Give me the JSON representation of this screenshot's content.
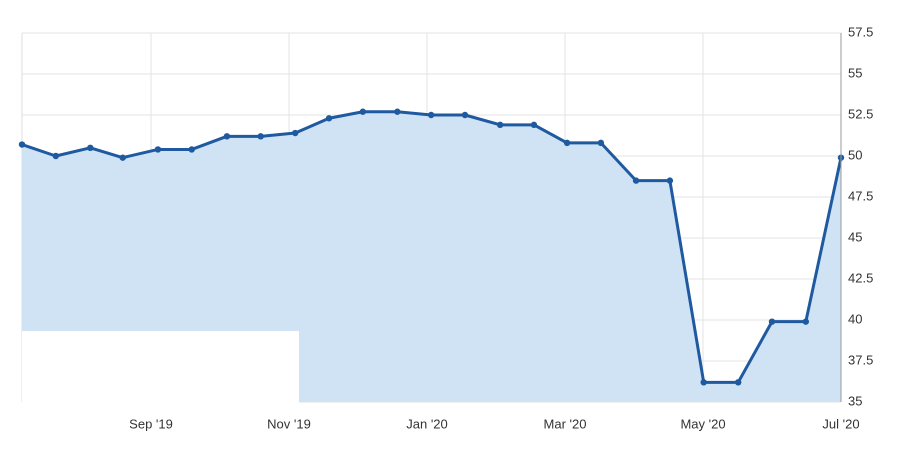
{
  "chart_data": {
    "type": "area",
    "x": [
      7.13,
      7.62,
      8.12,
      8.59,
      9.1,
      9.59,
      10.1,
      10.59,
      11.09,
      11.58,
      12.07,
      12.57,
      13.06,
      13.55,
      14.06,
      14.55,
      15.03,
      15.52,
      16.03,
      16.52,
      17.01,
      17.51,
      18.0,
      18.49,
      19.0
    ],
    "values": [
      50.7,
      50.0,
      50.5,
      49.9,
      50.4,
      50.4,
      51.2,
      51.2,
      51.4,
      52.3,
      52.7,
      52.7,
      52.5,
      52.5,
      51.9,
      51.9,
      50.8,
      50.8,
      48.5,
      48.5,
      36.2,
      36.2,
      39.9,
      39.9,
      49.9
    ],
    "color": "#1f5aa0",
    "fill_color": "#cfe3f5",
    "xlim": [
      7.13,
      19
    ],
    "xticks": [
      {
        "value": 9,
        "label": "Sep '19"
      },
      {
        "value": 11,
        "label": "Nov '19"
      },
      {
        "value": 13,
        "label": "Jan '20"
      },
      {
        "value": 15,
        "label": "Mar '20"
      },
      {
        "value": 17,
        "label": "May '20"
      },
      {
        "value": 19,
        "label": "Jul '20"
      }
    ],
    "ylim": [
      35,
      57.5
    ],
    "yticks": [
      35,
      37.5,
      40,
      42.5,
      45,
      47.5,
      50,
      52.5,
      55,
      57.5
    ],
    "grid": true
  }
}
